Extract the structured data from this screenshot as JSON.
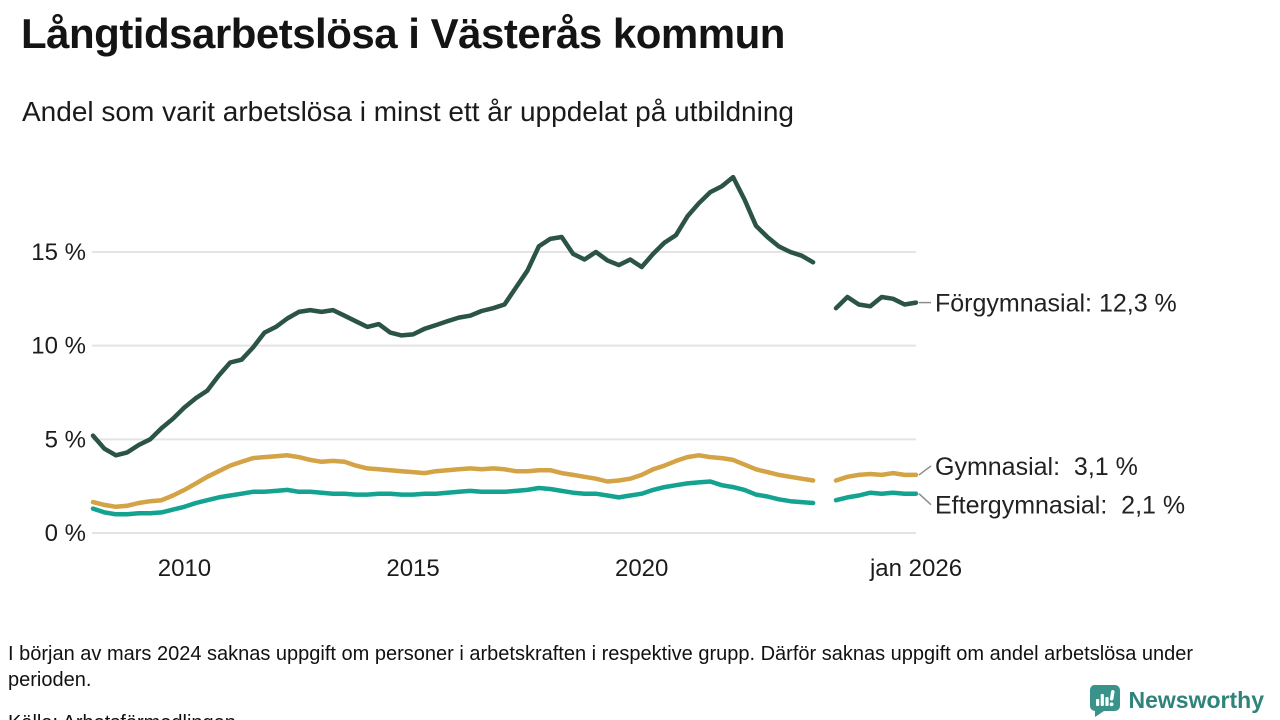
{
  "header": {
    "title": "Långtidsarbetslösa i Västerås kommun",
    "subtitle": "Andel som varit arbetslösa i minst ett år uppdelat på utbildning"
  },
  "chart_data": {
    "type": "line",
    "title": "Långtidsarbetslösa i Västerås kommun",
    "subtitle": "Andel som varit arbetslösa i minst ett år uppdelat på utbildning",
    "xlabel": "",
    "ylabel": "",
    "unit": "%",
    "x_start": 2008,
    "x_step": 0.25,
    "xlim": [
      2008,
      2026
    ],
    "ylim": [
      0,
      19.6
    ],
    "grid": true,
    "label_placement": "line-end",
    "gridline_color": "#e4e4e4",
    "x_ticks": [
      {
        "value": 2010,
        "label": "2010"
      },
      {
        "value": 2015,
        "label": "2015"
      },
      {
        "value": 2020,
        "label": "2020"
      },
      {
        "value": 2026,
        "label": "jan 2026"
      }
    ],
    "y_ticks": [
      {
        "value": 0,
        "label": "0 %"
      },
      {
        "value": 5,
        "label": "5 %"
      },
      {
        "value": 10,
        "label": "10 %"
      },
      {
        "value": 15,
        "label": "15 %"
      }
    ],
    "series": [
      {
        "id": "forgymnasial",
        "name": "Förgymnasial",
        "end_value": 12.3,
        "end_label": "Förgymnasial: 12,3 %",
        "color": "#2b5347",
        "values": [
          5.2,
          4.5,
          4.15,
          4.3,
          4.7,
          5.0,
          5.6,
          6.1,
          6.7,
          7.2,
          7.6,
          8.4,
          9.1,
          9.25,
          9.9,
          10.7,
          11.0,
          11.45,
          11.8,
          11.9,
          11.8,
          11.9,
          11.6,
          11.3,
          11.0,
          11.15,
          10.7,
          10.55,
          10.6,
          10.9,
          11.1,
          11.3,
          11.5,
          11.6,
          11.85,
          12.0,
          12.2,
          13.1,
          14.0,
          15.3,
          15.7,
          15.8,
          14.9,
          14.6,
          15.0,
          14.55,
          14.3,
          14.6,
          14.2,
          14.9,
          15.5,
          15.9,
          16.9,
          17.6,
          18.2,
          18.5,
          19.0,
          17.8,
          16.4,
          15.8,
          15.3,
          15.0,
          14.8,
          14.45,
          null,
          12.0,
          12.6,
          12.2,
          12.1,
          12.6,
          12.5,
          12.2,
          12.3
        ]
      },
      {
        "id": "gymnasial",
        "name": "Gymnasial",
        "end_value": 3.1,
        "end_label": "Gymnasial:  3,1 %",
        "color": "#d3a345",
        "values": [
          1.65,
          1.5,
          1.4,
          1.45,
          1.6,
          1.7,
          1.75,
          2.0,
          2.3,
          2.65,
          3.0,
          3.3,
          3.6,
          3.8,
          4.0,
          4.05,
          4.1,
          4.15,
          4.05,
          3.9,
          3.8,
          3.85,
          3.8,
          3.6,
          3.45,
          3.4,
          3.35,
          3.3,
          3.25,
          3.2,
          3.3,
          3.35,
          3.4,
          3.45,
          3.4,
          3.45,
          3.4,
          3.3,
          3.3,
          3.35,
          3.35,
          3.2,
          3.1,
          3.0,
          2.9,
          2.75,
          2.8,
          2.9,
          3.1,
          3.4,
          3.6,
          3.85,
          4.05,
          4.15,
          4.05,
          4.0,
          3.9,
          3.65,
          3.4,
          3.25,
          3.1,
          3.0,
          2.9,
          2.8,
          null,
          2.8,
          3.0,
          3.1,
          3.15,
          3.1,
          3.2,
          3.1,
          3.1
        ]
      },
      {
        "id": "eftergymnasial",
        "name": "Eftergymnasial",
        "end_value": 2.1,
        "end_label": "Eftergymnasial:  2,1 %",
        "color": "#14a390",
        "values": [
          1.3,
          1.1,
          1.0,
          1.0,
          1.05,
          1.05,
          1.1,
          1.25,
          1.4,
          1.6,
          1.75,
          1.9,
          2.0,
          2.1,
          2.2,
          2.2,
          2.25,
          2.3,
          2.2,
          2.2,
          2.15,
          2.1,
          2.1,
          2.05,
          2.05,
          2.1,
          2.1,
          2.05,
          2.05,
          2.1,
          2.1,
          2.15,
          2.2,
          2.25,
          2.2,
          2.2,
          2.2,
          2.25,
          2.3,
          2.4,
          2.35,
          2.25,
          2.15,
          2.1,
          2.1,
          2.0,
          1.9,
          2.0,
          2.1,
          2.3,
          2.45,
          2.55,
          2.65,
          2.7,
          2.75,
          2.55,
          2.45,
          2.3,
          2.05,
          1.95,
          1.8,
          1.7,
          1.65,
          1.6,
          null,
          1.75,
          1.9,
          2.0,
          2.15,
          2.1,
          2.15,
          2.1,
          2.1
        ]
      }
    ]
  },
  "footer": {
    "note": "I början av mars 2024 saknas uppgift om personer i arbetskraften i respektive grupp. Därför saknas uppgift om andel arbetslösa under perioden.",
    "source": "Källa: Arbetsförmedlingen"
  },
  "brand": {
    "name": "Newsworthy",
    "icon": "newsworthy-speech-bubble-bar-chart-icon",
    "text_color": "#2e837b",
    "icon_color": "#3a938a"
  }
}
